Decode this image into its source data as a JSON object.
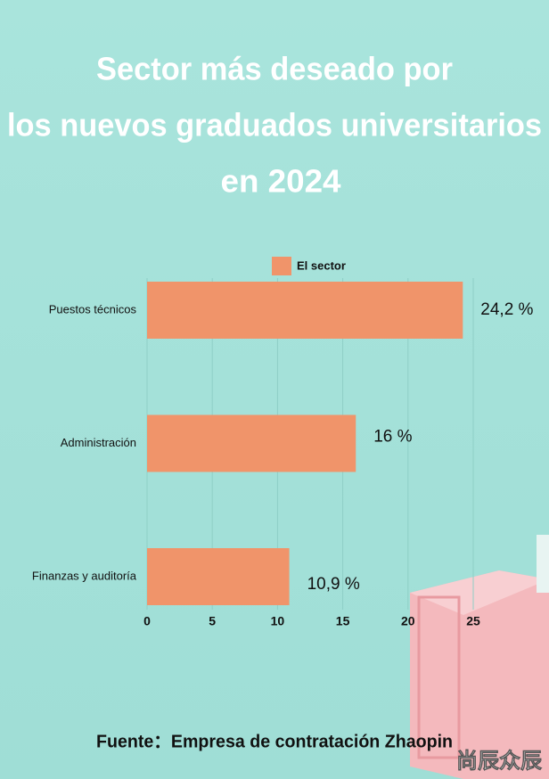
{
  "chart_data": {
    "type": "bar",
    "orientation": "horizontal",
    "title": [
      "Sector más deseado por",
      "los nuevos graduados universitarios",
      "en 2024"
    ],
    "categories": [
      "Puestos técnicos",
      "Administración",
      "Finanzas y auditoría"
    ],
    "series": [
      {
        "name": "El sector",
        "color": "#f0946a",
        "values": [
          24.2,
          16,
          10.9
        ],
        "value_labels": [
          "24,2 %",
          "16 %",
          "10,9 %"
        ]
      }
    ],
    "xlim": [
      0,
      25
    ],
    "xticks": [
      0,
      5,
      10,
      15,
      20,
      25
    ],
    "grid": true,
    "legend": "top",
    "source": "Fuente：Empresa de contratación Zhaopin",
    "watermark": "尚辰众辰"
  }
}
